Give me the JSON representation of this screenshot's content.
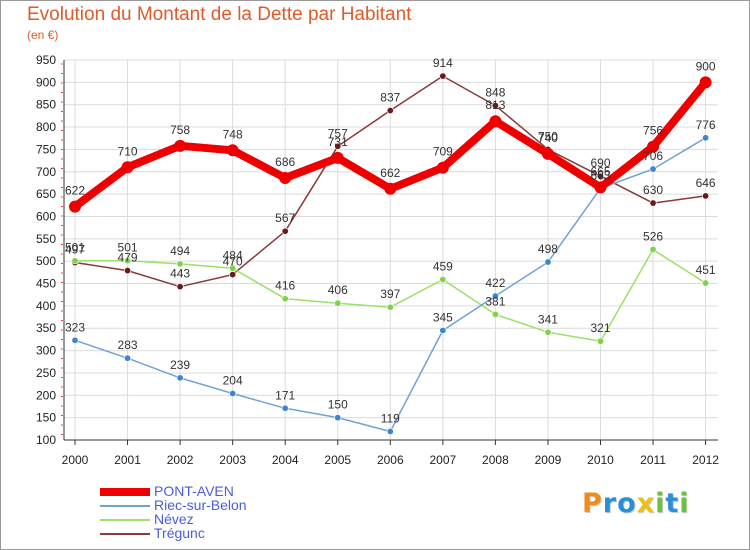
{
  "chart_data": {
    "type": "line",
    "title": "Evolution du Montant de la Dette par Habitant",
    "subtitle": "(en €)",
    "x": [
      "2000",
      "2001",
      "2002",
      "2003",
      "2004",
      "2005",
      "2006",
      "2007",
      "2008",
      "2009",
      "2010",
      "2011",
      "2012"
    ],
    "ylim": [
      100,
      950
    ],
    "yticks": [
      100,
      150,
      200,
      250,
      300,
      350,
      400,
      450,
      500,
      550,
      600,
      650,
      700,
      750,
      800,
      850,
      900,
      950
    ],
    "grid": true,
    "legend_position": "bottom-left",
    "series": [
      {
        "name": "PONT-AVEN",
        "color": "#ee0000",
        "marker_color": "#ee0000",
        "line_width": 8,
        "marker_radius": 6,
        "values": [
          622,
          710,
          758,
          748,
          686,
          731,
          662,
          709,
          813,
          740,
          665,
          756,
          900
        ]
      },
      {
        "name": "Riec-sur-Belon",
        "color": "#6fa3d6",
        "marker_color": "#3d86cf",
        "line_width": 1.5,
        "marker_radius": 3.2,
        "values": [
          323,
          283,
          239,
          204,
          171,
          150,
          119,
          345,
          422,
          498,
          663,
          706,
          776
        ]
      },
      {
        "name": "Névez",
        "color": "#9be06a",
        "marker_color": "#7fd24a",
        "line_width": 1.5,
        "marker_radius": 3.2,
        "values": [
          501,
          501,
          494,
          484,
          416,
          406,
          397,
          459,
          381,
          341,
          321,
          526,
          451
        ]
      },
      {
        "name": "Trégunc",
        "color": "#8b3a3a",
        "marker_color": "#6b1a1a",
        "line_width": 1.5,
        "marker_radius": 3.2,
        "values": [
          497,
          479,
          443,
          470,
          567,
          757,
          837,
          914,
          848,
          750,
          690,
          630,
          646
        ]
      }
    ]
  },
  "brand": {
    "name": "Proxiti",
    "letters": [
      {
        "ch": "P",
        "color": "#f08a1c"
      },
      {
        "ch": "r",
        "color": "#2b8fd6"
      },
      {
        "ch": "o",
        "color": "#2b8fd6"
      },
      {
        "ch": "x",
        "color": "#e8c21a"
      },
      {
        "ch": "i",
        "color": "#6ec23a"
      },
      {
        "ch": "t",
        "color": "#2b8fd6"
      },
      {
        "ch": "i",
        "color": "#6ec23a"
      }
    ]
  }
}
